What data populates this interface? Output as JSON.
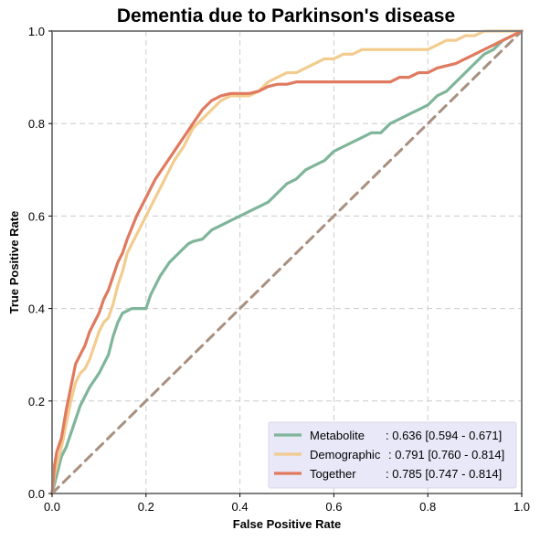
{
  "chart_data": {
    "type": "line",
    "title": "Dementia due to Parkinson's disease",
    "xlabel": "False Positive Rate",
    "ylabel": "True Positive Rate",
    "xlim": [
      0,
      1
    ],
    "ylim": [
      0,
      1
    ],
    "xticks": [
      "0.0",
      "0.2",
      "0.4",
      "0.6",
      "0.8",
      "1.0"
    ],
    "yticks": [
      "0.0",
      "0.2",
      "0.4",
      "0.6",
      "0.8",
      "1.0"
    ],
    "grid": true,
    "legend_position": "bottom-right",
    "legend_bg": "#e8e8f8",
    "frame_color": "#808080",
    "series": [
      {
        "name": "Metabolite",
        "auc_label": ": 0.636 [0.594 - 0.671]",
        "color": "#7fb59a",
        "x": [
          0.0,
          0.005,
          0.01,
          0.015,
          0.02,
          0.03,
          0.04,
          0.05,
          0.06,
          0.07,
          0.08,
          0.1,
          0.12,
          0.13,
          0.14,
          0.15,
          0.17,
          0.18,
          0.2,
          0.21,
          0.22,
          0.23,
          0.25,
          0.27,
          0.29,
          0.3,
          0.32,
          0.33,
          0.34,
          0.36,
          0.38,
          0.4,
          0.42,
          0.44,
          0.46,
          0.48,
          0.5,
          0.52,
          0.54,
          0.56,
          0.58,
          0.6,
          0.62,
          0.64,
          0.66,
          0.68,
          0.7,
          0.72,
          0.74,
          0.76,
          0.78,
          0.8,
          0.82,
          0.84,
          0.86,
          0.88,
          0.9,
          0.92,
          0.94,
          0.96,
          0.98,
          1.0
        ],
        "y": [
          0.0,
          0.02,
          0.04,
          0.06,
          0.08,
          0.1,
          0.13,
          0.16,
          0.19,
          0.21,
          0.23,
          0.26,
          0.3,
          0.34,
          0.37,
          0.39,
          0.4,
          0.4,
          0.4,
          0.43,
          0.45,
          0.47,
          0.5,
          0.52,
          0.54,
          0.545,
          0.55,
          0.56,
          0.57,
          0.58,
          0.59,
          0.6,
          0.61,
          0.62,
          0.63,
          0.65,
          0.67,
          0.68,
          0.7,
          0.71,
          0.72,
          0.74,
          0.75,
          0.76,
          0.77,
          0.78,
          0.78,
          0.8,
          0.81,
          0.82,
          0.83,
          0.84,
          0.86,
          0.87,
          0.89,
          0.91,
          0.93,
          0.95,
          0.96,
          0.98,
          0.99,
          1.0
        ]
      },
      {
        "name": "Demographic",
        "auc_label": ": 0.791 [0.760 - 0.814]",
        "color": "#f2cc8f",
        "x": [
          0.0,
          0.005,
          0.01,
          0.02,
          0.03,
          0.04,
          0.05,
          0.06,
          0.07,
          0.08,
          0.09,
          0.1,
          0.11,
          0.12,
          0.13,
          0.14,
          0.15,
          0.16,
          0.18,
          0.2,
          0.22,
          0.24,
          0.26,
          0.28,
          0.3,
          0.32,
          0.34,
          0.36,
          0.38,
          0.4,
          0.42,
          0.44,
          0.46,
          0.48,
          0.5,
          0.52,
          0.54,
          0.56,
          0.58,
          0.6,
          0.62,
          0.64,
          0.66,
          0.68,
          0.7,
          0.72,
          0.74,
          0.76,
          0.78,
          0.8,
          0.82,
          0.84,
          0.86,
          0.88,
          0.9,
          0.92,
          0.94,
          0.96,
          0.98,
          1.0
        ],
        "y": [
          0.0,
          0.04,
          0.06,
          0.1,
          0.15,
          0.2,
          0.24,
          0.26,
          0.27,
          0.29,
          0.32,
          0.35,
          0.37,
          0.38,
          0.41,
          0.45,
          0.48,
          0.52,
          0.56,
          0.6,
          0.64,
          0.68,
          0.72,
          0.75,
          0.79,
          0.81,
          0.83,
          0.85,
          0.86,
          0.86,
          0.86,
          0.87,
          0.89,
          0.9,
          0.91,
          0.91,
          0.92,
          0.93,
          0.94,
          0.94,
          0.95,
          0.95,
          0.96,
          0.96,
          0.96,
          0.96,
          0.96,
          0.96,
          0.96,
          0.96,
          0.97,
          0.98,
          0.98,
          0.99,
          0.99,
          1.0,
          1.0,
          1.0,
          1.0,
          1.0
        ]
      },
      {
        "name": "Together",
        "auc_label": ": 0.785 [0.747 - 0.814]",
        "color": "#e07a5f",
        "x": [
          0.0,
          0.005,
          0.01,
          0.02,
          0.03,
          0.04,
          0.05,
          0.06,
          0.07,
          0.08,
          0.09,
          0.1,
          0.11,
          0.12,
          0.13,
          0.14,
          0.15,
          0.16,
          0.18,
          0.2,
          0.22,
          0.24,
          0.26,
          0.28,
          0.3,
          0.32,
          0.34,
          0.36,
          0.38,
          0.4,
          0.42,
          0.44,
          0.46,
          0.48,
          0.5,
          0.52,
          0.54,
          0.56,
          0.58,
          0.6,
          0.62,
          0.64,
          0.66,
          0.68,
          0.7,
          0.72,
          0.74,
          0.76,
          0.78,
          0.8,
          0.82,
          0.84,
          0.86,
          0.88,
          0.9,
          0.92,
          0.94,
          0.96,
          0.98,
          1.0
        ],
        "y": [
          0.0,
          0.06,
          0.09,
          0.12,
          0.18,
          0.23,
          0.28,
          0.3,
          0.32,
          0.35,
          0.37,
          0.39,
          0.42,
          0.44,
          0.47,
          0.5,
          0.52,
          0.55,
          0.6,
          0.64,
          0.68,
          0.71,
          0.74,
          0.77,
          0.8,
          0.83,
          0.85,
          0.86,
          0.865,
          0.865,
          0.865,
          0.87,
          0.88,
          0.885,
          0.885,
          0.89,
          0.89,
          0.89,
          0.89,
          0.89,
          0.89,
          0.89,
          0.89,
          0.89,
          0.89,
          0.89,
          0.9,
          0.9,
          0.91,
          0.91,
          0.92,
          0.925,
          0.93,
          0.94,
          0.95,
          0.96,
          0.97,
          0.98,
          0.99,
          1.0
        ]
      },
      {
        "name": "",
        "role": "chance",
        "color": "#a89080",
        "dashed": true,
        "x": [
          0,
          1
        ],
        "y": [
          0,
          1
        ]
      }
    ]
  }
}
